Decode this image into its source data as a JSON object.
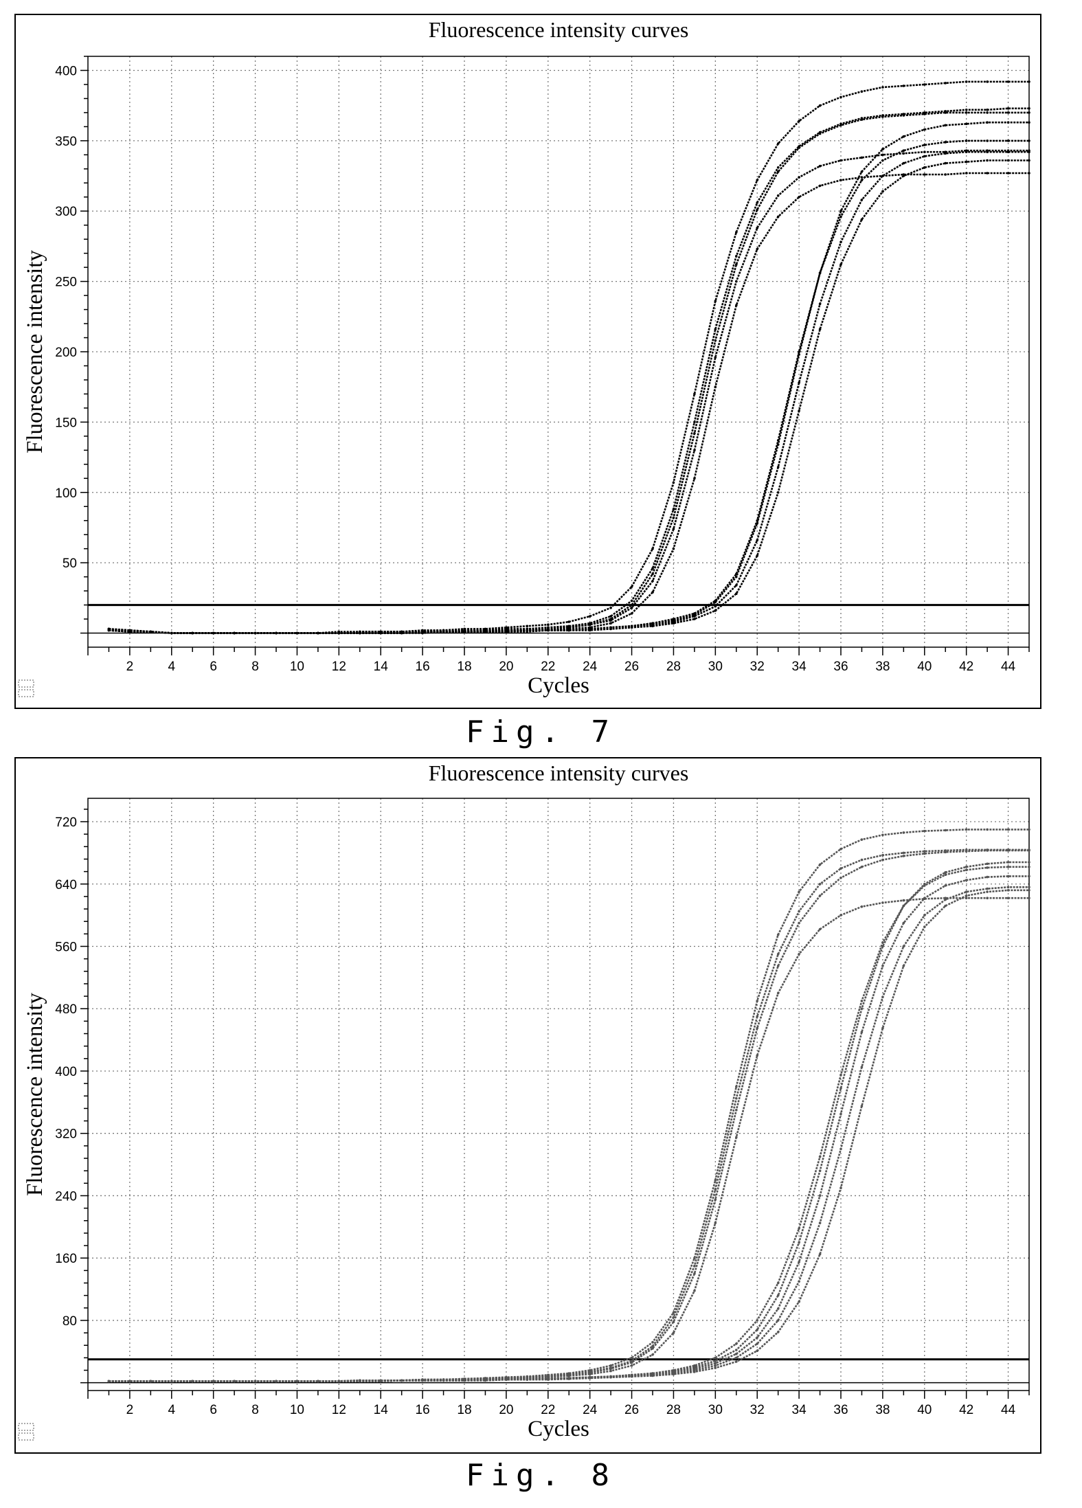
{
  "chart_data": [
    {
      "type": "line",
      "title": "Fluorescence intensity curves",
      "xlabel": "Cycles",
      "ylabel": "Fluorescence intensity",
      "caption": "Fig. 7",
      "xlim": [
        0,
        45
      ],
      "ylim": [
        -10,
        410
      ],
      "xticks": [
        2,
        4,
        6,
        8,
        10,
        12,
        14,
        16,
        18,
        20,
        22,
        24,
        26,
        28,
        30,
        32,
        34,
        36,
        38,
        40,
        42,
        44
      ],
      "yticks": [
        50,
        100,
        150,
        200,
        250,
        300,
        350,
        400
      ],
      "grid": true,
      "threshold": 20,
      "line_color": "#000000",
      "x": [
        1,
        2,
        3,
        4,
        5,
        6,
        7,
        8,
        9,
        10,
        11,
        12,
        13,
        14,
        15,
        16,
        17,
        18,
        19,
        20,
        21,
        22,
        23,
        24,
        25,
        26,
        27,
        28,
        29,
        30,
        31,
        32,
        33,
        34,
        35,
        36,
        37,
        38,
        39,
        40,
        41,
        42,
        43,
        44,
        45
      ],
      "series": [
        {
          "values": [
            3,
            2,
            1,
            0,
            0,
            0,
            0,
            0,
            0,
            0,
            0,
            1,
            1,
            1,
            1,
            2,
            2,
            3,
            3,
            4,
            5,
            6,
            8,
            12,
            18,
            33,
            60,
            107,
            170,
            236,
            285,
            322,
            348,
            364,
            375,
            381,
            385,
            388,
            389,
            390,
            391,
            392,
            392,
            392,
            392
          ]
        },
        {
          "values": [
            3,
            2,
            1,
            0,
            0,
            0,
            0,
            0,
            0,
            0,
            0,
            0,
            1,
            1,
            1,
            1,
            2,
            2,
            2,
            3,
            3,
            4,
            5,
            7,
            12,
            23,
            46,
            88,
            150,
            216,
            268,
            306,
            331,
            346,
            356,
            362,
            366,
            368,
            369,
            370,
            371,
            372,
            372,
            373,
            373
          ]
        },
        {
          "values": [
            2,
            1,
            1,
            0,
            0,
            0,
            0,
            0,
            0,
            0,
            0,
            0,
            0,
            1,
            1,
            1,
            1,
            1,
            2,
            2,
            3,
            3,
            4,
            6,
            9,
            18,
            37,
            74,
            130,
            196,
            250,
            288,
            311,
            324,
            332,
            336,
            338,
            340,
            341,
            342,
            342,
            343,
            343,
            343,
            343
          ]
        },
        {
          "values": [
            2,
            1,
            1,
            0,
            0,
            0,
            0,
            0,
            0,
            0,
            0,
            0,
            0,
            0,
            1,
            1,
            1,
            1,
            1,
            2,
            2,
            2,
            3,
            4,
            7,
            14,
            29,
            60,
            110,
            175,
            233,
            273,
            296,
            310,
            318,
            322,
            324,
            325,
            326,
            326,
            326,
            327,
            327,
            327,
            327
          ]
        },
        {
          "values": [
            3,
            2,
            1,
            0,
            0,
            0,
            0,
            0,
            0,
            0,
            0,
            0,
            1,
            1,
            1,
            1,
            1,
            2,
            2,
            2,
            3,
            3,
            4,
            6,
            10,
            20,
            42,
            82,
            142,
            208,
            262,
            301,
            328,
            345,
            355,
            361,
            365,
            367,
            368,
            369,
            370,
            370,
            370,
            370,
            370
          ]
        },
        {
          "values": [
            2,
            1,
            1,
            0,
            0,
            0,
            0,
            0,
            0,
            0,
            0,
            0,
            0,
            0,
            0,
            1,
            1,
            1,
            1,
            1,
            2,
            2,
            2,
            3,
            4,
            5,
            7,
            10,
            14,
            23,
            42,
            80,
            137,
            200,
            256,
            296,
            322,
            336,
            343,
            347,
            349,
            350,
            350,
            350,
            350
          ]
        },
        {
          "values": [
            2,
            1,
            1,
            0,
            0,
            0,
            0,
            0,
            0,
            0,
            0,
            0,
            0,
            0,
            0,
            1,
            1,
            1,
            1,
            1,
            2,
            2,
            2,
            3,
            3,
            4,
            6,
            8,
            12,
            19,
            34,
            66,
            118,
            178,
            234,
            278,
            308,
            325,
            334,
            339,
            341,
            342,
            342,
            342,
            342
          ]
        },
        {
          "values": [
            2,
            1,
            1,
            0,
            0,
            0,
            0,
            0,
            0,
            0,
            0,
            0,
            0,
            0,
            0,
            0,
            1,
            1,
            1,
            1,
            1,
            2,
            2,
            2,
            3,
            4,
            5,
            7,
            10,
            16,
            28,
            55,
            100,
            158,
            216,
            262,
            294,
            314,
            325,
            331,
            334,
            335,
            336,
            336,
            336
          ]
        },
        {
          "values": [
            2,
            1,
            1,
            0,
            0,
            0,
            0,
            0,
            0,
            0,
            0,
            0,
            0,
            0,
            0,
            1,
            1,
            1,
            1,
            1,
            2,
            2,
            2,
            3,
            4,
            5,
            7,
            9,
            13,
            22,
            40,
            78,
            134,
            198,
            256,
            300,
            328,
            344,
            353,
            358,
            361,
            362,
            363,
            363,
            363
          ]
        }
      ]
    },
    {
      "type": "line",
      "title": "Fluorescence intensity curves",
      "xlabel": "Cycles",
      "ylabel": "Fluorescence intensity",
      "caption": "Fig. 8",
      "xlim": [
        0,
        45
      ],
      "ylim": [
        -10,
        750
      ],
      "xticks": [
        2,
        4,
        6,
        8,
        10,
        12,
        14,
        16,
        18,
        20,
        22,
        24,
        26,
        28,
        30,
        32,
        34,
        36,
        38,
        40,
        42,
        44
      ],
      "yticks": [
        80,
        160,
        240,
        320,
        400,
        480,
        560,
        640,
        720
      ],
      "grid": true,
      "threshold": 30,
      "line_color": "#555555",
      "x": [
        1,
        2,
        3,
        4,
        5,
        6,
        7,
        8,
        9,
        10,
        11,
        12,
        13,
        14,
        15,
        16,
        17,
        18,
        19,
        20,
        21,
        22,
        23,
        24,
        25,
        26,
        27,
        28,
        29,
        30,
        31,
        32,
        33,
        34,
        35,
        36,
        37,
        38,
        39,
        40,
        41,
        42,
        43,
        44,
        45
      ],
      "series": [
        {
          "values": [
            2,
            2,
            2,
            2,
            2,
            2,
            2,
            2,
            2,
            2,
            2,
            2,
            3,
            3,
            3,
            4,
            4,
            5,
            6,
            7,
            8,
            10,
            12,
            16,
            22,
            32,
            52,
            90,
            160,
            260,
            380,
            490,
            575,
            630,
            665,
            685,
            697,
            703,
            706,
            708,
            709,
            710,
            710,
            710,
            710
          ]
        },
        {
          "values": [
            2,
            2,
            2,
            2,
            2,
            2,
            2,
            2,
            2,
            2,
            2,
            2,
            3,
            3,
            3,
            3,
            4,
            4,
            5,
            6,
            7,
            8,
            10,
            13,
            18,
            26,
            44,
            78,
            140,
            235,
            350,
            455,
            535,
            590,
            625,
            648,
            662,
            671,
            676,
            679,
            681,
            682,
            683,
            683,
            683
          ]
        },
        {
          "values": [
            2,
            2,
            2,
            2,
            2,
            2,
            2,
            2,
            2,
            2,
            2,
            2,
            2,
            3,
            3,
            3,
            3,
            4,
            4,
            5,
            6,
            7,
            9,
            11,
            15,
            22,
            36,
            64,
            118,
            205,
            315,
            420,
            500,
            550,
            582,
            600,
            611,
            616,
            619,
            621,
            622,
            622,
            622,
            622,
            622
          ]
        },
        {
          "values": [
            2,
            2,
            2,
            2,
            2,
            2,
            2,
            2,
            2,
            2,
            2,
            2,
            3,
            3,
            3,
            4,
            4,
            5,
            5,
            6,
            7,
            9,
            11,
            14,
            19,
            28,
            47,
            84,
            150,
            248,
            365,
            470,
            550,
            605,
            640,
            660,
            671,
            677,
            680,
            682,
            683,
            684,
            684,
            684,
            684
          ]
        },
        {
          "values": [
            2,
            2,
            2,
            2,
            2,
            2,
            2,
            2,
            2,
            2,
            2,
            2,
            2,
            2,
            3,
            3,
            3,
            3,
            4,
            4,
            5,
            5,
            6,
            7,
            8,
            10,
            12,
            15,
            20,
            28,
            42,
            68,
            112,
            180,
            272,
            378,
            480,
            560,
            612,
            640,
            655,
            662,
            666,
            668,
            668
          ]
        },
        {
          "values": [
            2,
            2,
            2,
            2,
            2,
            2,
            2,
            2,
            2,
            2,
            2,
            2,
            2,
            2,
            3,
            3,
            3,
            3,
            4,
            4,
            5,
            5,
            6,
            7,
            8,
            9,
            11,
            14,
            18,
            25,
            37,
            58,
            95,
            155,
            240,
            345,
            450,
            535,
            590,
            622,
            638,
            645,
            649,
            650,
            650
          ]
        },
        {
          "values": [
            2,
            2,
            2,
            2,
            2,
            2,
            2,
            2,
            2,
            2,
            2,
            2,
            2,
            2,
            3,
            3,
            3,
            3,
            3,
            4,
            4,
            5,
            5,
            6,
            7,
            8,
            10,
            12,
            16,
            22,
            32,
            50,
            80,
            130,
            205,
            300,
            405,
            495,
            560,
            600,
            620,
            630,
            634,
            636,
            636
          ]
        },
        {
          "values": [
            2,
            2,
            2,
            2,
            2,
            2,
            2,
            2,
            2,
            2,
            2,
            2,
            2,
            2,
            3,
            3,
            3,
            3,
            3,
            4,
            4,
            4,
            5,
            6,
            7,
            8,
            9,
            11,
            14,
            19,
            27,
            41,
            65,
            104,
            165,
            250,
            355,
            455,
            535,
            585,
            612,
            625,
            630,
            632,
            632
          ]
        },
        {
          "values": [
            2,
            2,
            2,
            2,
            2,
            2,
            2,
            2,
            2,
            2,
            2,
            2,
            2,
            2,
            3,
            3,
            3,
            3,
            4,
            4,
            5,
            5,
            6,
            7,
            8,
            10,
            12,
            16,
            22,
            32,
            50,
            80,
            128,
            198,
            290,
            395,
            490,
            565,
            612,
            638,
            652,
            658,
            661,
            662,
            662
          ]
        }
      ]
    }
  ]
}
